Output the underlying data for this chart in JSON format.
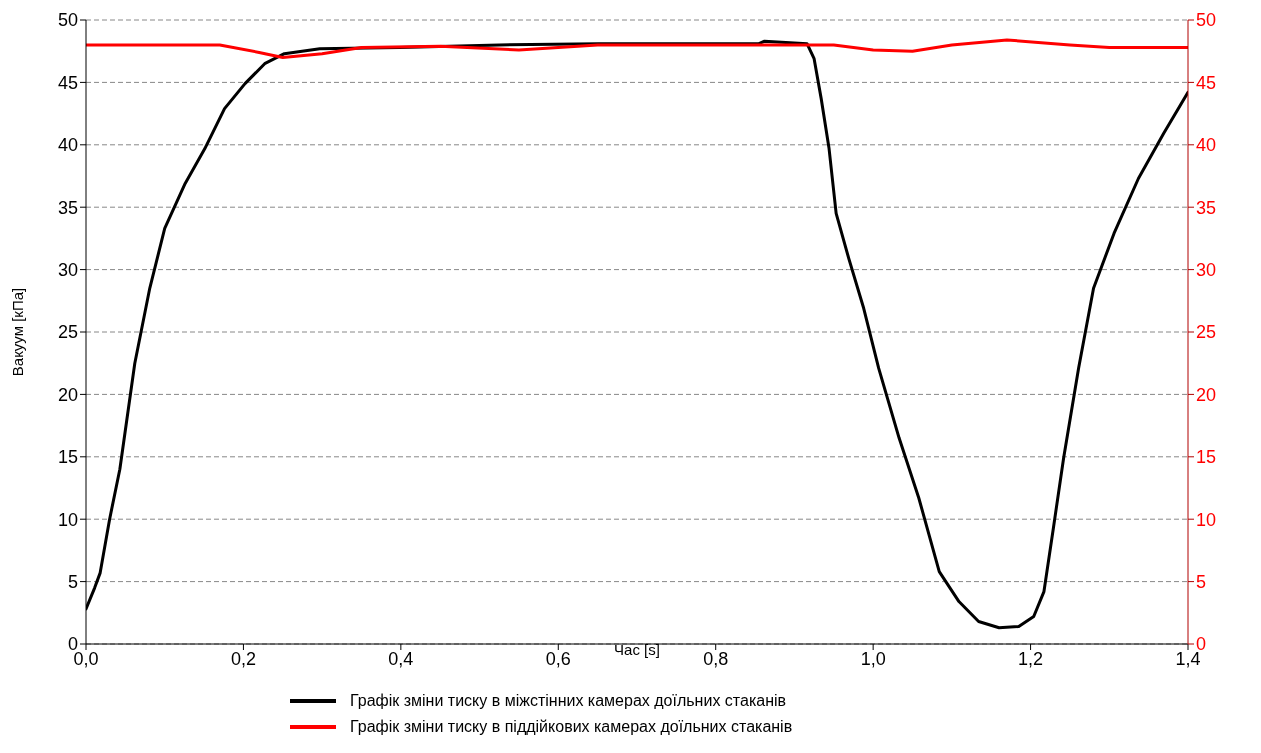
{
  "chart_data": {
    "type": "line",
    "xlabel": "Час [s]",
    "ylabel": "Вакуум [кПа]",
    "xlim": [
      0,
      1.4
    ],
    "xticks": [
      {
        "value": 0,
        "label": "0,0"
      },
      {
        "value": 0.2,
        "label": "0,2"
      },
      {
        "value": 0.4,
        "label": "0,4"
      },
      {
        "value": 0.6,
        "label": "0,6"
      },
      {
        "value": 0.8,
        "label": "0,8"
      },
      {
        "value": 1.0,
        "label": "1,0"
      },
      {
        "value": 1.2,
        "label": "1,2"
      },
      {
        "value": 1.4,
        "label": "1,4"
      }
    ],
    "ylim": [
      0,
      50
    ],
    "yticks": [
      0,
      5,
      10,
      15,
      20,
      25,
      30,
      35,
      40,
      45,
      50
    ],
    "y2lim": [
      0,
      50
    ],
    "y2ticks": [
      0,
      5,
      10,
      15,
      20,
      25,
      30,
      35,
      40,
      45,
      50
    ],
    "grid": "y",
    "legend": "bottom",
    "marker": "none",
    "line_style": "solid",
    "series": [
      {
        "name": "Графік зміни тиску в міжстінних камерах доїльних стаканів",
        "color": "#000000",
        "x": [
          0,
          0.011,
          0.018,
          0.03,
          0.043,
          0.062,
          0.081,
          0.1,
          0.126,
          0.151,
          0.176,
          0.202,
          0.227,
          0.252,
          0.297,
          0.398,
          0.525,
          0.652,
          0.779,
          0.855,
          0.862,
          0.916,
          0.925,
          0.934,
          0.944,
          0.953,
          0.969,
          0.988,
          1.007,
          1.033,
          1.058,
          1.084,
          1.109,
          1.134,
          1.16,
          1.185,
          1.204,
          1.217,
          1.229,
          1.242,
          1.261,
          1.28,
          1.306,
          1.337,
          1.369,
          1.4
        ],
        "values": [
          2.8,
          4.5,
          5.7,
          10,
          14,
          22.5,
          28.5,
          33.3,
          36.9,
          39.7,
          42.9,
          44.9,
          46.5,
          47.3,
          47.7,
          47.8,
          48,
          48.1,
          48.1,
          48.1,
          48.3,
          48.1,
          46.9,
          43.7,
          39.7,
          34.5,
          30.9,
          26.9,
          22.1,
          16.5,
          11.7,
          5.8,
          3.4,
          1.8,
          1.3,
          1.4,
          2.2,
          4.2,
          9.3,
          14.9,
          22.1,
          28.5,
          32.9,
          37.3,
          40.9,
          44.2
        ]
      },
      {
        "name": "Графік зміни тиску в піддійкових камерах доїльних стаканів",
        "color": "#ff0000",
        "axis": "y2",
        "x": [
          0,
          0.1,
          0.17,
          0.22,
          0.25,
          0.3,
          0.35,
          0.45,
          0.55,
          0.65,
          0.8,
          0.9,
          0.95,
          1.0,
          1.05,
          1.1,
          1.17,
          1.25,
          1.3,
          1.4
        ],
        "values": [
          48,
          48,
          48,
          47.4,
          47,
          47.3,
          47.8,
          47.9,
          47.6,
          48,
          48,
          48,
          48,
          47.6,
          47.5,
          48,
          48.4,
          48,
          47.8,
          47.8
        ]
      }
    ]
  }
}
